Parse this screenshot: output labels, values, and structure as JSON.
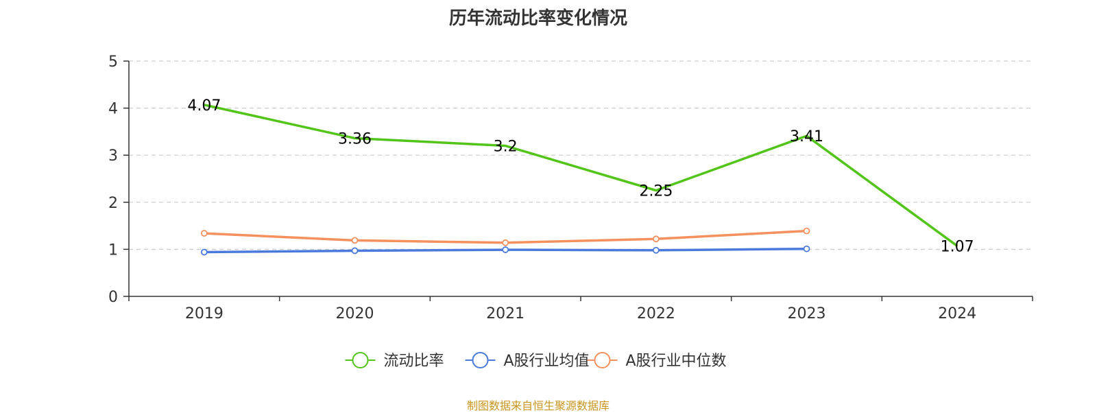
{
  "chart_data": {
    "type": "line",
    "title": "历年流动比率变化情况",
    "categories": [
      "2019",
      "2020",
      "2021",
      "2022",
      "2023",
      "2024"
    ],
    "ylim": [
      0,
      5
    ],
    "yticks": [
      0,
      1,
      2,
      3,
      4,
      5
    ],
    "grid": true,
    "legend_position": "bottom",
    "series": [
      {
        "name": "流动比率",
        "color": "#52c41a",
        "values": [
          4.07,
          3.36,
          3.2,
          2.25,
          3.41,
          1.07
        ],
        "labels": [
          "4.07",
          "3.36",
          "3.2",
          "2.25",
          "3.41",
          "1.07"
        ],
        "show_labels": true
      },
      {
        "name": "A股行业均值",
        "color": "#4a7bdc",
        "values": [
          0.94,
          0.97,
          0.99,
          0.98,
          1.01,
          null
        ],
        "show_labels": false
      },
      {
        "name": "A股行业中位数",
        "color": "#f4915e",
        "values": [
          1.34,
          1.19,
          1.14,
          1.22,
          1.39,
          null
        ],
        "show_labels": false
      }
    ]
  },
  "source_note": "制图数据来自恒生聚源数据库"
}
